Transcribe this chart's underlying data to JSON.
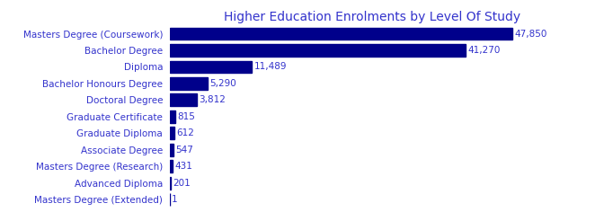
{
  "title": "Higher Education Enrolments by Level Of Study",
  "title_color": "#3333cc",
  "title_fontsize": 10,
  "categories": [
    "Masters Degree (Extended)",
    "Advanced Diploma",
    "Masters Degree (Research)",
    "Associate Degree",
    "Graduate Diploma",
    "Graduate Certificate",
    "Doctoral Degree",
    "Bachelor Honours Degree",
    "Diploma",
    "Bachelor Degree",
    "Masters Degree (Coursework)"
  ],
  "values": [
    1,
    201,
    431,
    547,
    612,
    815,
    3812,
    5290,
    11489,
    41270,
    47850
  ],
  "labels": [
    "1",
    "201",
    "431",
    "547",
    "612",
    "815",
    "3,812",
    "5,290",
    "11,489",
    "41,270",
    "47,850"
  ],
  "bar_color": "#00008B",
  "label_color": "#3333cc",
  "label_fontsize": 7.5,
  "tick_label_color": "#3333cc",
  "tick_label_fontsize": 7.5,
  "background_color": "#ffffff",
  "bar_height": 0.75
}
